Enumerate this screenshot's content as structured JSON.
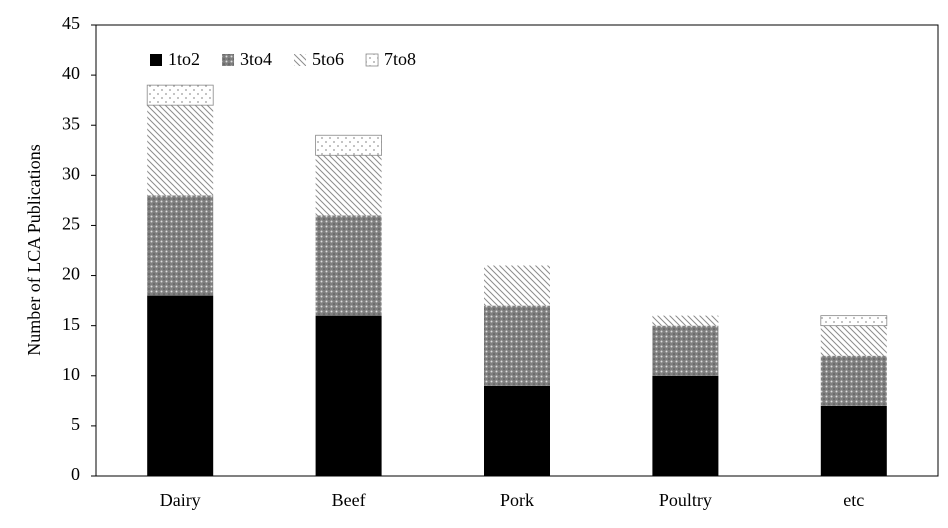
{
  "chart_data": {
    "type": "stacked_bar",
    "y_label": "Number of LCA Publications",
    "categories": [
      "Dairy",
      "Beef",
      "Pork",
      "Poultry",
      "etc"
    ],
    "series": [
      {
        "name": "1to2",
        "color": "#000000",
        "values": [
          18,
          16,
          9,
          10,
          7
        ]
      },
      {
        "name": "3to4",
        "color": "#7f7f7f",
        "values": [
          10,
          10,
          8,
          5,
          5
        ]
      },
      {
        "name": "5to6",
        "color": "#8c8c8c",
        "values": [
          9,
          6,
          4,
          1,
          3
        ]
      },
      {
        "name": "7to8",
        "color": "#9a9a9a",
        "values": [
          2,
          2,
          0,
          0,
          1
        ]
      }
    ],
    "ylim": [
      0,
      45
    ],
    "yticks": [
      0,
      5,
      10,
      15,
      20,
      25,
      30,
      35,
      40,
      45
    ]
  }
}
